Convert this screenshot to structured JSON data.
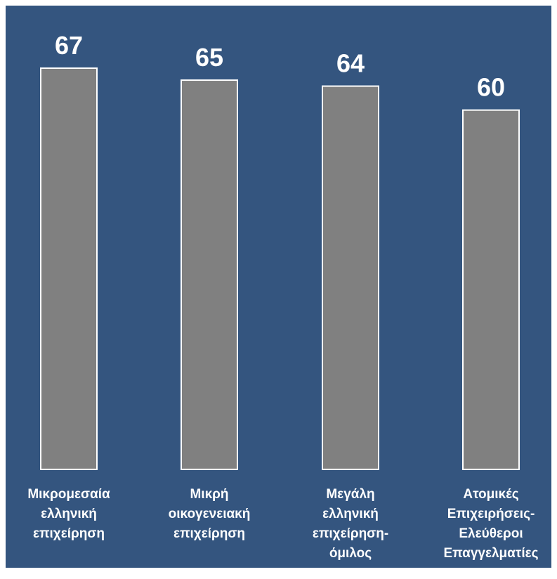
{
  "colors": {
    "background": "#34557f",
    "bar_fill": "#808080",
    "bar_stroke": "#ffffff",
    "text": "#ffffff"
  },
  "chart_data": {
    "type": "bar",
    "categories": [
      [
        "Μικρομεσαία",
        "ελληνική",
        "επιχείρηση"
      ],
      [
        "Μικρή",
        "οικογενειακή",
        "επιχείρηση"
      ],
      [
        "Μεγάλη",
        "ελληνική",
        "επιχείρηση-",
        "όμιλος"
      ],
      [
        "Ατομικές",
        "Επιχειρήσεις-",
        "Ελεύθεροι",
        "Επαγγελματίες"
      ]
    ],
    "values": [
      67,
      65,
      64,
      60
    ],
    "data_labels": [
      "67",
      "65",
      "64",
      "60"
    ],
    "title": "",
    "xlabel": "",
    "ylabel": "",
    "ylim": [
      0,
      67
    ],
    "grid": false,
    "legend": "none"
  }
}
